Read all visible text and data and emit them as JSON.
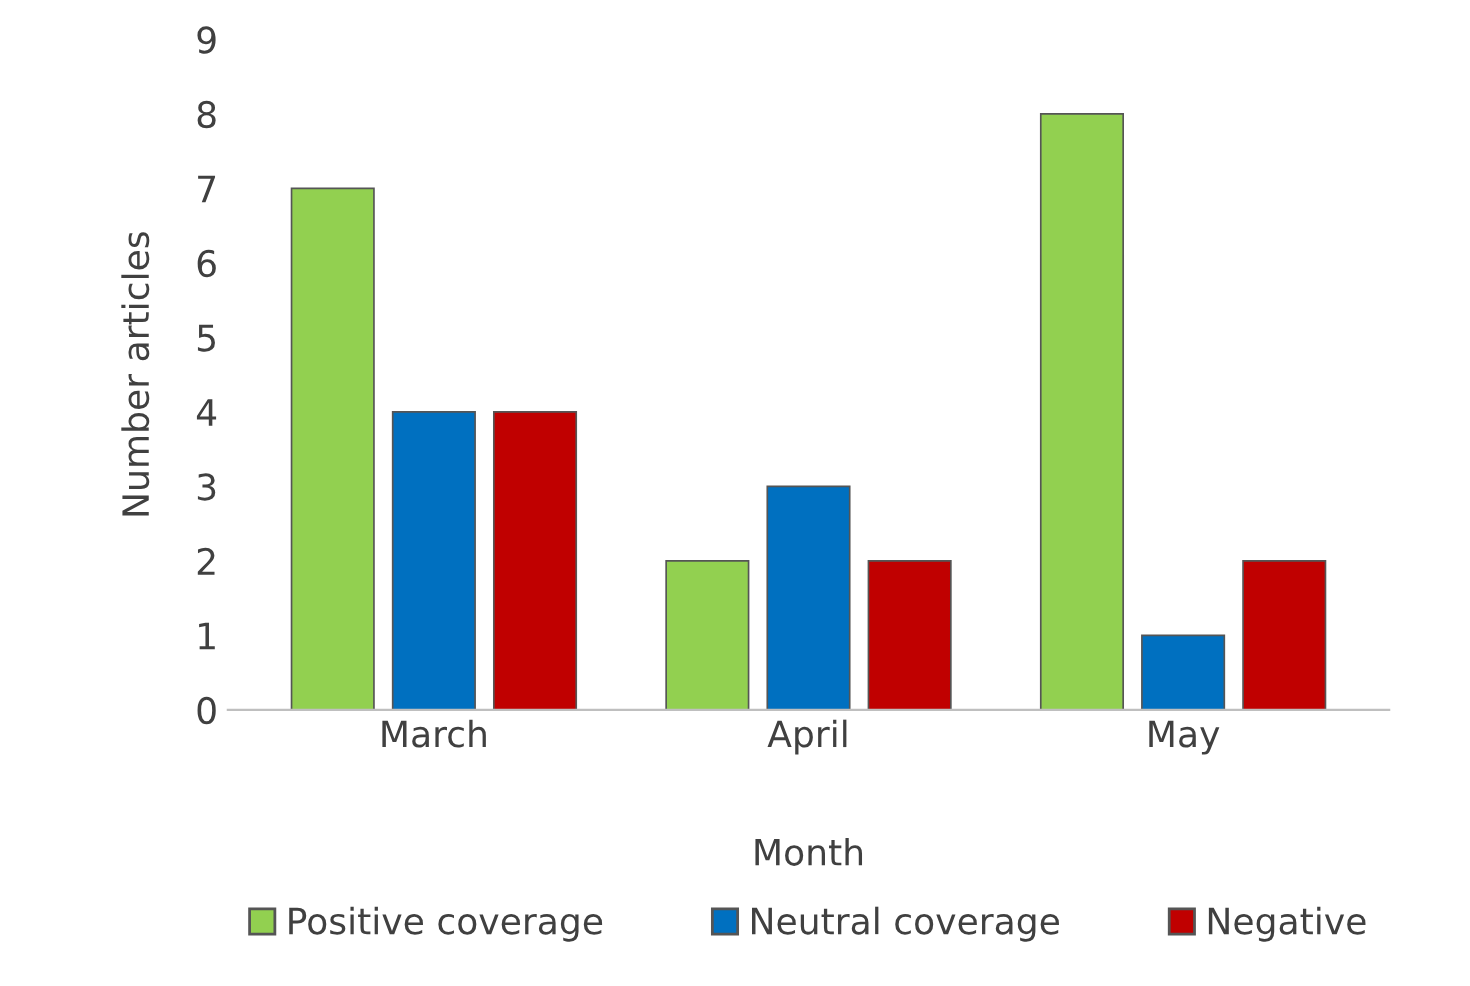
{
  "chart_data": {
    "type": "bar",
    "xlabel": "Month",
    "ylabel": "Number articles",
    "categories": [
      "March",
      "April",
      "May"
    ],
    "series": [
      {
        "name": "Positive coverage",
        "color": "#92d050",
        "values": [
          7,
          2,
          8
        ]
      },
      {
        "name": "Neutral coverage",
        "color": "#0070c0",
        "values": [
          4,
          3,
          1
        ]
      },
      {
        "name": "Negative",
        "color": "#c00000",
        "values": [
          4,
          2,
          2
        ]
      }
    ],
    "ylim": [
      0,
      9
    ],
    "yticks": [
      0,
      1,
      2,
      3,
      4,
      5,
      6,
      7,
      8,
      9
    ],
    "grid": false,
    "legend": "bottom"
  }
}
